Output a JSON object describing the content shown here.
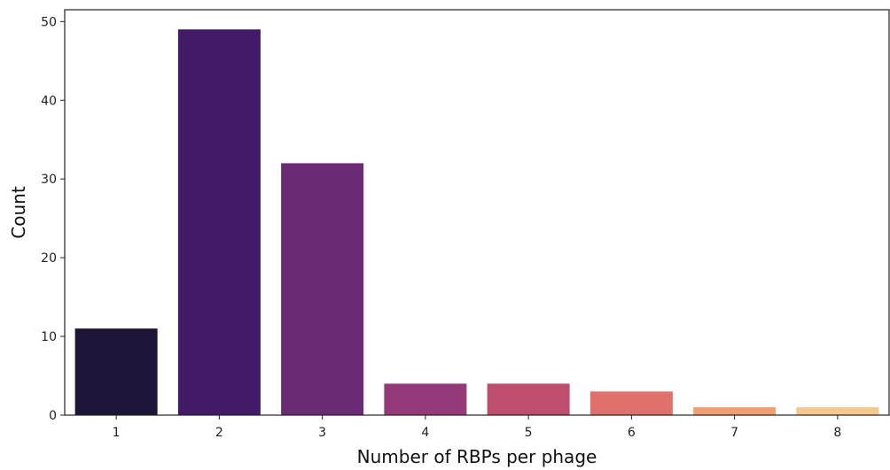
{
  "chart_data": {
    "type": "bar",
    "categories": [
      "1",
      "2",
      "3",
      "4",
      "5",
      "6",
      "7",
      "8"
    ],
    "values": [
      11,
      49,
      32,
      4,
      4,
      3,
      1,
      1
    ],
    "colors": [
      "#1d1537",
      "#421a67",
      "#6a2b74",
      "#953a79",
      "#bf4d6d",
      "#e0706b",
      "#f0a070",
      "#f4c98e"
    ],
    "xlabel": "Number of RBPs per phage",
    "ylabel": "Count",
    "ylim": [
      0,
      51.5
    ],
    "yticks": [
      "0",
      "10",
      "20",
      "30",
      "40",
      "50"
    ],
    "grid": false,
    "legend": "none"
  }
}
